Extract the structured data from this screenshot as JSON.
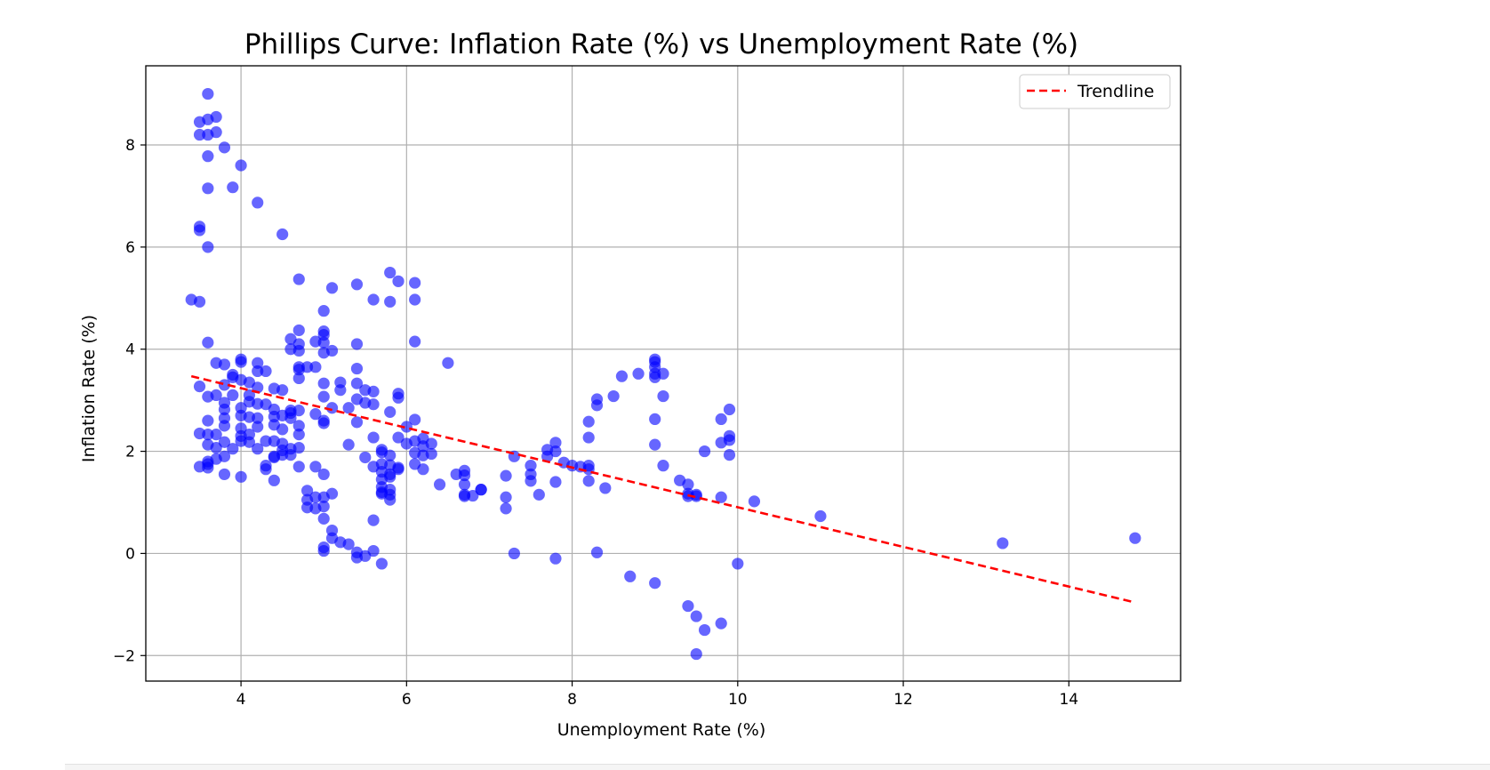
{
  "chart_data": {
    "type": "scatter",
    "title": "Phillips Curve: Inflation Rate (%) vs Unemployment Rate (%)",
    "xlabel": "Unemployment Rate (%)",
    "ylabel": "Inflation Rate (%)",
    "xlim": [
      2.85,
      15.35
    ],
    "ylim": [
      -2.5,
      9.55
    ],
    "xticks": [
      4,
      6,
      8,
      10,
      12,
      14
    ],
    "yticks": [
      -2,
      0,
      2,
      4,
      6,
      8
    ],
    "xtick_labels": [
      "4",
      "6",
      "8",
      "10",
      "12",
      "14"
    ],
    "ytick_labels": [
      "−2",
      "0",
      "2",
      "4",
      "6",
      "8"
    ],
    "grid": true,
    "legend": {
      "position": "top-right",
      "entries": [
        "Trendline"
      ]
    },
    "colors": {
      "points": "#0000ff",
      "trendline": "#ff0000"
    },
    "trendline": {
      "x": [
        3.4,
        14.8
      ],
      "y": [
        3.47,
        -0.96
      ]
    },
    "points": [
      [
        3.6,
        9.0
      ],
      [
        3.5,
        8.45
      ],
      [
        3.6,
        8.5
      ],
      [
        3.7,
        8.55
      ],
      [
        3.5,
        8.2
      ],
      [
        3.6,
        8.2
      ],
      [
        3.7,
        8.25
      ],
      [
        3.8,
        7.95
      ],
      [
        3.6,
        7.78
      ],
      [
        4.0,
        7.6
      ],
      [
        3.6,
        7.15
      ],
      [
        3.9,
        7.17
      ],
      [
        4.2,
        6.87
      ],
      [
        4.5,
        6.25
      ],
      [
        3.5,
        6.4
      ],
      [
        3.5,
        6.33
      ],
      [
        3.6,
        6.0
      ],
      [
        3.4,
        4.97
      ],
      [
        3.5,
        4.93
      ],
      [
        3.6,
        4.13
      ],
      [
        4.7,
        5.37
      ],
      [
        5.1,
        5.2
      ],
      [
        5.4,
        5.27
      ],
      [
        5.8,
        5.5
      ],
      [
        5.9,
        5.33
      ],
      [
        6.1,
        5.3
      ],
      [
        5.6,
        4.97
      ],
      [
        5.8,
        4.93
      ],
      [
        6.1,
        4.97
      ],
      [
        5.0,
        4.75
      ],
      [
        6.1,
        4.15
      ],
      [
        4.6,
        4.2
      ],
      [
        4.7,
        4.37
      ],
      [
        5.0,
        4.35
      ],
      [
        5.0,
        4.28
      ],
      [
        4.9,
        4.15
      ],
      [
        5.0,
        4.13
      ],
      [
        4.7,
        4.1
      ],
      [
        5.4,
        4.1
      ],
      [
        4.6,
        4.0
      ],
      [
        4.7,
        3.97
      ],
      [
        5.1,
        3.97
      ],
      [
        5.0,
        3.93
      ],
      [
        3.7,
        3.73
      ],
      [
        3.8,
        3.7
      ],
      [
        4.0,
        3.8
      ],
      [
        4.0,
        3.75
      ],
      [
        4.2,
        3.73
      ],
      [
        4.7,
        3.65
      ],
      [
        4.8,
        3.65
      ],
      [
        4.9,
        3.65
      ],
      [
        4.7,
        3.6
      ],
      [
        4.2,
        3.57
      ],
      [
        4.3,
        3.57
      ],
      [
        5.4,
        3.62
      ],
      [
        3.9,
        3.5
      ],
      [
        3.9,
        3.45
      ],
      [
        4.0,
        3.4
      ],
      [
        4.7,
        3.43
      ],
      [
        5.0,
        3.33
      ],
      [
        5.2,
        3.35
      ],
      [
        3.8,
        3.3
      ],
      [
        3.5,
        3.27
      ],
      [
        4.1,
        3.35
      ],
      [
        4.2,
        3.25
      ],
      [
        4.4,
        3.23
      ],
      [
        4.5,
        3.2
      ],
      [
        5.2,
        3.2
      ],
      [
        5.4,
        3.33
      ],
      [
        5.5,
        3.2
      ],
      [
        5.6,
        3.17
      ],
      [
        5.9,
        3.13
      ],
      [
        5.9,
        3.05
      ],
      [
        3.6,
        3.07
      ],
      [
        3.7,
        3.1
      ],
      [
        3.9,
        3.1
      ],
      [
        4.1,
        3.1
      ],
      [
        5.0,
        3.07
      ],
      [
        5.4,
        3.02
      ],
      [
        3.8,
        2.95
      ],
      [
        4.1,
        2.97
      ],
      [
        4.2,
        2.93
      ],
      [
        4.3,
        2.92
      ],
      [
        5.5,
        2.95
      ],
      [
        5.6,
        2.92
      ],
      [
        3.8,
        2.82
      ],
      [
        4.0,
        2.85
      ],
      [
        4.4,
        2.82
      ],
      [
        4.6,
        2.8
      ],
      [
        4.6,
        2.75
      ],
      [
        4.7,
        2.8
      ],
      [
        4.9,
        2.73
      ],
      [
        5.1,
        2.85
      ],
      [
        5.3,
        2.85
      ],
      [
        5.8,
        2.77
      ],
      [
        3.6,
        2.6
      ],
      [
        3.8,
        2.65
      ],
      [
        4.0,
        2.7
      ],
      [
        4.1,
        2.67
      ],
      [
        4.2,
        2.65
      ],
      [
        4.4,
        2.68
      ],
      [
        4.5,
        2.7
      ],
      [
        4.6,
        2.65
      ],
      [
        5.0,
        2.6
      ],
      [
        5.0,
        2.55
      ],
      [
        5.4,
        2.57
      ],
      [
        4.7,
        2.5
      ],
      [
        3.8,
        2.5
      ],
      [
        4.0,
        2.45
      ],
      [
        4.2,
        2.48
      ],
      [
        4.4,
        2.52
      ],
      [
        4.5,
        2.43
      ],
      [
        6.0,
        2.48
      ],
      [
        6.1,
        2.62
      ],
      [
        3.5,
        2.35
      ],
      [
        3.6,
        2.33
      ],
      [
        3.7,
        2.33
      ],
      [
        4.0,
        2.3
      ],
      [
        4.1,
        2.33
      ],
      [
        4.7,
        2.33
      ],
      [
        6.2,
        2.25
      ],
      [
        3.6,
        2.13
      ],
      [
        3.8,
        2.18
      ],
      [
        4.0,
        2.2
      ],
      [
        4.1,
        2.18
      ],
      [
        4.3,
        2.2
      ],
      [
        4.4,
        2.2
      ],
      [
        4.5,
        2.15
      ],
      [
        4.6,
        2.05
      ],
      [
        4.7,
        2.07
      ],
      [
        5.3,
        2.13
      ],
      [
        5.6,
        2.27
      ],
      [
        5.9,
        2.27
      ],
      [
        6.0,
        2.15
      ],
      [
        6.1,
        2.2
      ],
      [
        6.2,
        2.1
      ],
      [
        6.3,
        2.15
      ],
      [
        3.7,
        2.07
      ],
      [
        3.9,
        2.05
      ],
      [
        4.2,
        2.05
      ],
      [
        4.5,
        2.02
      ],
      [
        5.7,
        2.03
      ],
      [
        5.7,
        1.98
      ],
      [
        5.8,
        1.92
      ],
      [
        6.1,
        1.97
      ],
      [
        6.2,
        1.92
      ],
      [
        6.3,
        1.95
      ],
      [
        3.6,
        1.8
      ],
      [
        3.6,
        1.75
      ],
      [
        3.7,
        1.85
      ],
      [
        3.8,
        1.9
      ],
      [
        4.3,
        1.72
      ],
      [
        4.4,
        1.9
      ],
      [
        4.4,
        1.88
      ],
      [
        4.5,
        1.93
      ],
      [
        4.6,
        1.93
      ],
      [
        4.7,
        1.7
      ],
      [
        3.5,
        1.7
      ],
      [
        3.6,
        1.68
      ],
      [
        4.3,
        1.65
      ],
      [
        4.9,
        1.7
      ],
      [
        5.5,
        1.88
      ],
      [
        5.7,
        1.75
      ],
      [
        5.8,
        1.73
      ],
      [
        5.9,
        1.68
      ],
      [
        5.9,
        1.65
      ],
      [
        6.1,
        1.75
      ],
      [
        6.2,
        1.65
      ],
      [
        5.6,
        1.7
      ],
      [
        5.7,
        1.6
      ],
      [
        5.8,
        1.55
      ],
      [
        3.8,
        1.55
      ],
      [
        4.0,
        1.5
      ],
      [
        4.4,
        1.43
      ],
      [
        5.0,
        1.55
      ],
      [
        5.7,
        1.45
      ],
      [
        5.8,
        1.5
      ],
      [
        5.7,
        1.3
      ],
      [
        5.8,
        1.25
      ],
      [
        5.7,
        1.2
      ],
      [
        5.8,
        1.15
      ],
      [
        5.7,
        1.17
      ],
      [
        5.8,
        1.05
      ],
      [
        4.8,
        1.23
      ],
      [
        4.9,
        1.1
      ],
      [
        5.0,
        1.1
      ],
      [
        4.8,
        1.05
      ],
      [
        5.1,
        1.17
      ],
      [
        4.8,
        0.9
      ],
      [
        4.9,
        0.88
      ],
      [
        5.0,
        0.92
      ],
      [
        5.0,
        0.68
      ],
      [
        5.6,
        0.65
      ],
      [
        5.1,
        0.45
      ],
      [
        5.1,
        0.3
      ],
      [
        5.2,
        0.22
      ],
      [
        5.3,
        0.18
      ],
      [
        5.0,
        0.12
      ],
      [
        5.0,
        0.05
      ],
      [
        5.4,
        0.02
      ],
      [
        5.6,
        0.05
      ],
      [
        5.4,
        -0.08
      ],
      [
        5.5,
        -0.05
      ],
      [
        5.7,
        -0.2
      ],
      [
        6.5,
        3.73
      ],
      [
        6.4,
        1.35
      ],
      [
        6.6,
        1.55
      ],
      [
        6.7,
        1.62
      ],
      [
        6.7,
        1.53
      ],
      [
        6.7,
        1.35
      ],
      [
        6.7,
        1.15
      ],
      [
        6.7,
        1.12
      ],
      [
        6.8,
        1.13
      ],
      [
        6.9,
        1.25
      ],
      [
        6.9,
        1.25
      ],
      [
        7.2,
        1.52
      ],
      [
        7.2,
        1.1
      ],
      [
        7.2,
        0.88
      ],
      [
        7.3,
        1.9
      ],
      [
        7.5,
        1.72
      ],
      [
        7.5,
        1.55
      ],
      [
        7.5,
        1.42
      ],
      [
        7.6,
        1.15
      ],
      [
        7.7,
        2.03
      ],
      [
        7.7,
        1.9
      ],
      [
        7.8,
        2.17
      ],
      [
        7.8,
        2.0
      ],
      [
        7.8,
        1.4
      ],
      [
        7.9,
        1.78
      ],
      [
        8.0,
        1.72
      ],
      [
        8.1,
        1.7
      ],
      [
        8.2,
        1.72
      ],
      [
        8.2,
        1.65
      ],
      [
        8.2,
        1.42
      ],
      [
        8.2,
        2.27
      ],
      [
        8.2,
        2.58
      ],
      [
        8.3,
        2.9
      ],
      [
        8.3,
        3.02
      ],
      [
        8.4,
        1.28
      ],
      [
        8.5,
        3.08
      ],
      [
        8.6,
        3.47
      ],
      [
        8.8,
        3.52
      ],
      [
        9.0,
        3.8
      ],
      [
        9.0,
        3.75
      ],
      [
        9.0,
        3.65
      ],
      [
        9.0,
        3.52
      ],
      [
        9.0,
        3.45
      ],
      [
        9.1,
        3.52
      ],
      [
        9.1,
        3.08
      ],
      [
        9.0,
        2.63
      ],
      [
        9.0,
        2.13
      ],
      [
        9.1,
        1.72
      ],
      [
        9.3,
        1.43
      ],
      [
        9.4,
        1.35
      ],
      [
        9.4,
        1.17
      ],
      [
        9.4,
        1.12
      ],
      [
        9.5,
        1.15
      ],
      [
        9.5,
        1.12
      ],
      [
        9.6,
        2.0
      ],
      [
        9.8,
        2.63
      ],
      [
        9.8,
        2.17
      ],
      [
        9.9,
        2.82
      ],
      [
        9.9,
        2.3
      ],
      [
        9.9,
        2.22
      ],
      [
        9.9,
        1.93
      ],
      [
        9.8,
        1.1
      ],
      [
        10.2,
        1.02
      ],
      [
        11.0,
        0.73
      ],
      [
        13.2,
        0.2
      ],
      [
        14.8,
        0.3
      ],
      [
        7.3,
        0.0
      ],
      [
        7.8,
        -0.1
      ],
      [
        8.3,
        0.02
      ],
      [
        8.7,
        -0.45
      ],
      [
        9.0,
        -0.58
      ],
      [
        10.0,
        -0.2
      ],
      [
        9.4,
        -1.03
      ],
      [
        9.5,
        -1.23
      ],
      [
        9.6,
        -1.5
      ],
      [
        9.8,
        -1.37
      ],
      [
        9.5,
        -1.97
      ]
    ]
  }
}
